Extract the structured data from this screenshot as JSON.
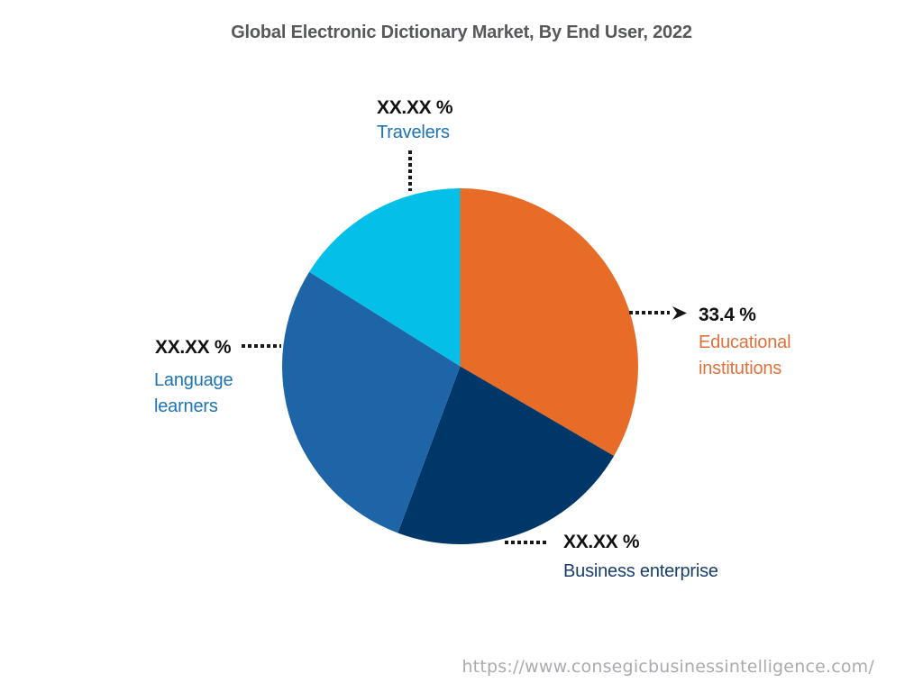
{
  "chart_data": {
    "type": "pie",
    "title": "Global Electronic Dictionary Market, By End User, 2022",
    "direction": "clockwise",
    "start_angle_deg": 0,
    "legend_position": "callout-labels-around-pie",
    "grid": false,
    "segments": [
      {
        "id": "educational-institutions",
        "label": "Educational institutions",
        "label_lines": [
          "Educational",
          "institutions"
        ],
        "display_value": "33.4 %",
        "value_pct": 33.4,
        "color": "#E66C28",
        "label_color": "#E0713C"
      },
      {
        "id": "business-enterprise",
        "label": "Business enterprise",
        "label_lines": [
          "Business enterprise"
        ],
        "display_value": "XX.XX %",
        "value_pct": 22.3,
        "color": "#003769",
        "label_color": "#1A3E6E"
      },
      {
        "id": "language-learners",
        "label": "Language learners",
        "label_lines": [
          "Language",
          "learners"
        ],
        "display_value": "XX.XX %",
        "value_pct": 28.2,
        "color": "#1D65A6",
        "label_color": "#1C73B6"
      },
      {
        "id": "travelers",
        "label": "Travelers",
        "label_lines": [
          "Travelers"
        ],
        "display_value": "XX.XX %",
        "value_pct": 16.1,
        "color": "#04BFE8",
        "label_color": "#1C73B6"
      }
    ]
  },
  "footer": {
    "source_url": "https://www.consegicbusinessintelligence.com/"
  },
  "colors": {
    "background": "#FFFFFF",
    "title_text": "#57585A",
    "value_text": "#121212",
    "leader_dots": "#191919",
    "url_text": "#A9ABAE"
  }
}
